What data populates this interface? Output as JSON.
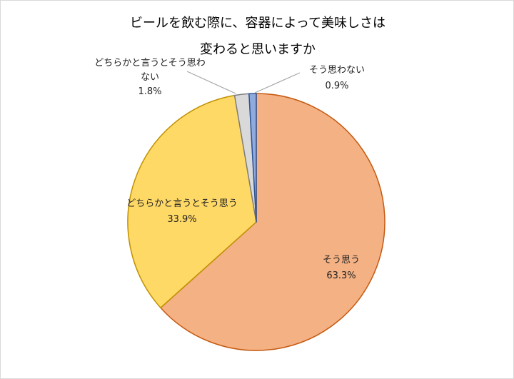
{
  "chart_data": {
    "type": "pie",
    "title_lines": [
      "ビールを飲む際に、容器によって美味しさは",
      "変わると思いますか"
    ],
    "slices": [
      {
        "label": "そう思う",
        "value": 63.3,
        "value_label": "63.3%",
        "color": "#f4b183",
        "stroke": "#c55a11"
      },
      {
        "label": "どちらかと言うとそう思う",
        "value": 33.9,
        "value_label": "33.9%",
        "color": "#ffd966",
        "stroke": "#bf9000"
      },
      {
        "label": "どちらかと言うとそう思わない",
        "label_lines": [
          "どちらかと言うとそう思わ",
          "ない"
        ],
        "value": 1.8,
        "value_label": "1.8%",
        "color": "#d9d9d9",
        "stroke": "#7f7f7f"
      },
      {
        "label": "そう思わない",
        "value": 0.9,
        "value_label": "0.9%",
        "color": "#8faadc",
        "stroke": "#2f5597"
      }
    ]
  }
}
